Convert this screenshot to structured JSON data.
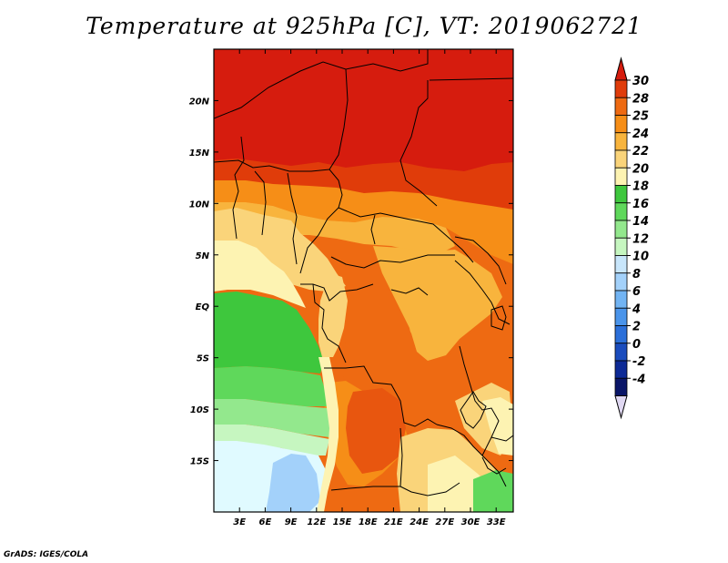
{
  "title": "Temperature at 925hPa [C], VT: 2019062721",
  "credit": "GrADS: IGES/COLA",
  "map": {
    "lon_range": [
      0,
      35
    ],
    "lat_range": [
      -20,
      25
    ],
    "x_ticks": [
      "3E",
      "6E",
      "9E",
      "12E",
      "15E",
      "18E",
      "21E",
      "24E",
      "27E",
      "30E",
      "33E"
    ],
    "y_ticks": [
      "20N",
      "15N",
      "10N",
      "5N",
      "EQ",
      "5S",
      "10S",
      "15S"
    ]
  },
  "colorbar": {
    "levels": [
      "30",
      "28",
      "25",
      "24",
      "22",
      "20",
      "18",
      "16",
      "14",
      "12",
      "10",
      "8",
      "6",
      "4",
      "2",
      "0",
      "-2",
      "-4"
    ],
    "colors": [
      "#d61c0e",
      "#e03c0a",
      "#ee6a12",
      "#f68e17",
      "#f8b43d",
      "#fad47a",
      "#fdf3b2",
      "#3ec73d",
      "#5fd85b",
      "#93e88d",
      "#c6f6c0",
      "#c8e6fb",
      "#a3d1fa",
      "#72b4f3",
      "#4a94ea",
      "#2b6fd9",
      "#1a4cbd",
      "#0d2a96",
      "#0a1668"
    ],
    "top_color": "#d61c0e",
    "bottom_color": "#e0d8f2"
  },
  "colors": {
    "hot": "#d61c0e",
    "orange_red": "#ee6a12",
    "orange": "#f68e17",
    "light_orange": "#f8b43d",
    "tan": "#fad47a",
    "pale": "#fdf3b2",
    "green": "#3ec73d",
    "light_green": "#5fd85b",
    "pale_green": "#93e88d",
    "mint": "#c6f6c0",
    "sky": "#a3d1fa",
    "ice": "#e0faff"
  }
}
